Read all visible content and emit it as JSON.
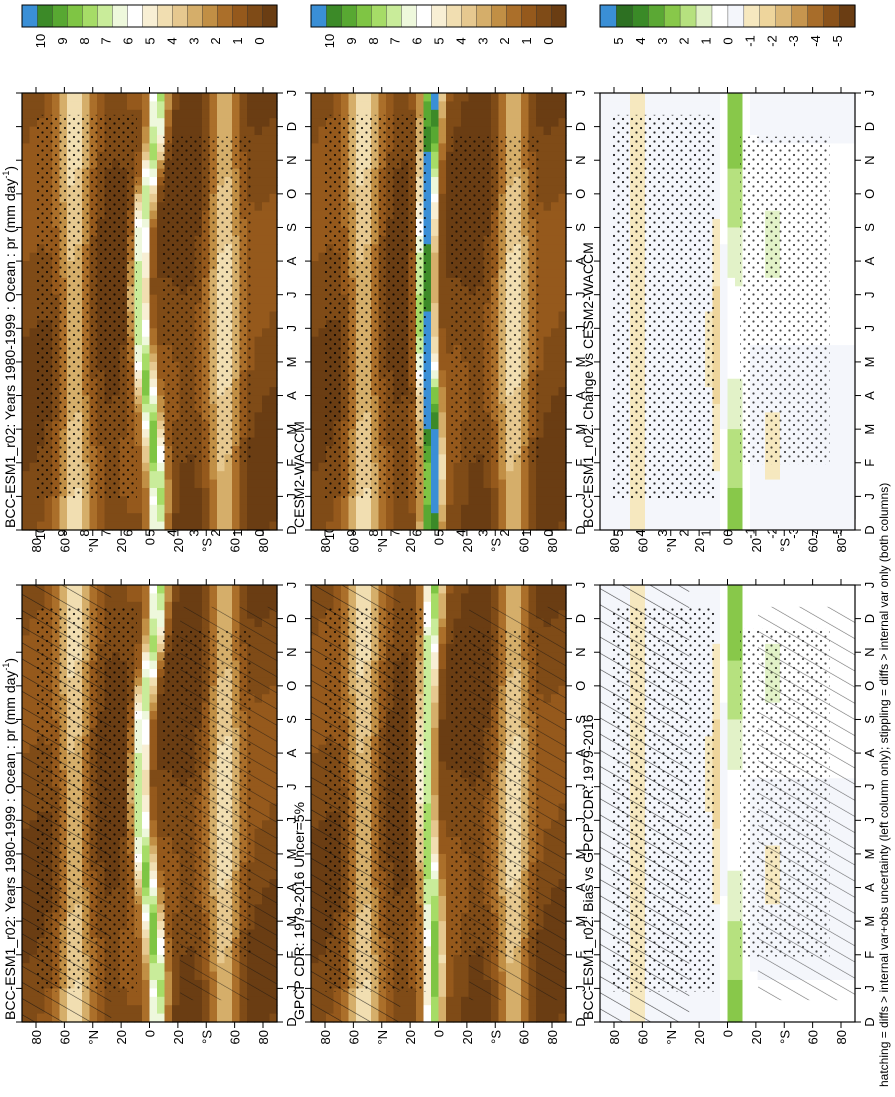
{
  "footer_note": "hatching = diffs > internal var+obs uncertainty (left column only); stippling = diffs > internal var only (both columns)",
  "colors": {
    "abs_scale": [
      "#6a3d13",
      "#7f4b17",
      "#95591c",
      "#ab6f2a",
      "#c18f45",
      "#d5ae6a",
      "#e6c88f",
      "#f1deb1",
      "#f8efd4",
      "#ffffff",
      "#eef8dc",
      "#c9ec9a",
      "#a6dc67",
      "#7fc544",
      "#58a832",
      "#3c8a28",
      "#3a8fd6"
    ],
    "diff_scale": [
      "#6a3d13",
      "#8a521a",
      "#a86d2a",
      "#c6954e",
      "#dcb877",
      "#eed59c",
      "#f6e8bf",
      "#f4f6fb",
      "#ffffff",
      "#e2f2c8",
      "#b6e17f",
      "#88c84a",
      "#5ba834",
      "#3a8a27",
      "#2d7022",
      "#3a8fd6"
    ]
  },
  "chart_data": [
    {
      "type": "heatmap",
      "panel": "top-left",
      "title": "BCC-ESM1_r02: Years 1980-1999 : Ocean : pr (mm day",
      "title_sup": "-1",
      "title_end": ")",
      "x_ticks": [
        "D",
        "J",
        "F",
        "M",
        "A",
        "M",
        "J",
        "J",
        "A",
        "S",
        "O",
        "N",
        "D",
        "J"
      ],
      "y_ticks": [
        "80",
        "60",
        "°N",
        "20",
        "0",
        "20",
        "°S",
        "60",
        "80"
      ],
      "colorbar": {
        "ticks": [
          "10",
          "9",
          "8",
          "7",
          "6",
          "5",
          "4",
          "3",
          "2",
          "1",
          "0"
        ],
        "range": [
          0,
          10
        ],
        "scale": "abs_scale"
      },
      "overlay": "hatching+stippling",
      "itcz": {
        "lat_by_month": [
          -5,
          -6,
          -4,
          -2,
          1,
          4,
          6,
          7,
          6,
          5,
          2,
          -2,
          -5,
          -6
        ],
        "peak_mm_day": 7
      }
    },
    {
      "type": "heatmap",
      "panel": "top-right",
      "title": "BCC-ESM1_r02: Years 1980-1999 : Ocean : pr (mm day",
      "title_sup": "-1",
      "title_end": ")",
      "x_ticks": [
        "D",
        "J",
        "F",
        "M",
        "A",
        "M",
        "J",
        "J",
        "A",
        "S",
        "O",
        "N",
        "D",
        "J"
      ],
      "y_ticks": [
        "80",
        "60",
        "°N",
        "20",
        "0",
        "20",
        "°S",
        "60",
        "80"
      ],
      "colorbar": {
        "ticks": [
          "10",
          "9",
          "8",
          "7",
          "6",
          "5",
          "4",
          "3",
          "2",
          "1",
          "0"
        ],
        "range": [
          0,
          10
        ],
        "scale": "abs_scale"
      },
      "overlay": "stippling",
      "itcz": {
        "lat_by_month": [
          -5,
          -6,
          -4,
          -2,
          1,
          4,
          6,
          7,
          6,
          5,
          2,
          -2,
          -5,
          -6
        ],
        "peak_mm_day": 7
      }
    },
    {
      "type": "heatmap",
      "panel": "middle-left",
      "title": "GPCP CDR: 1979-2016 Uncer=5%",
      "x_ticks": [
        "D",
        "J",
        "F",
        "M",
        "A",
        "M",
        "J",
        "J",
        "A",
        "S",
        "O",
        "N",
        "D",
        "J"
      ],
      "y_ticks": [
        "80",
        "60",
        "°N",
        "20",
        "0",
        "20",
        "°S",
        "60",
        "80"
      ],
      "colorbar": {
        "ticks": [
          "10",
          "9",
          "8",
          "7",
          "6",
          "5",
          "4",
          "3",
          "2",
          "1",
          "0"
        ],
        "range": [
          0,
          10
        ],
        "scale": "abs_scale"
      },
      "overlay": "hatching+stippling",
      "itcz": {
        "lat_by_month": [
          4,
          3,
          3,
          4,
          5,
          7,
          8,
          9,
          9,
          8,
          7,
          6,
          4,
          3
        ],
        "peak_mm_day": 7
      }
    },
    {
      "type": "heatmap",
      "panel": "middle-right",
      "title": "CESM2-WACCM",
      "x_ticks": [
        "D",
        "J",
        "F",
        "M",
        "A",
        "M",
        "J",
        "J",
        "A",
        "S",
        "O",
        "N",
        "D",
        "J"
      ],
      "y_ticks": [
        "80",
        "60",
        "°N",
        "20",
        "0",
        "20",
        "°S",
        "60",
        "80"
      ],
      "colorbar": {
        "ticks": [
          "10",
          "9",
          "8",
          "7",
          "6",
          "5",
          "4",
          "3",
          "2",
          "1",
          "0"
        ],
        "range": [
          0,
          10
        ],
        "scale": "abs_scale"
      },
      "overlay": "stippling",
      "itcz": {
        "lat_by_month": [
          5,
          4,
          4,
          5,
          6,
          8,
          9,
          9,
          9,
          8,
          7,
          6,
          5,
          4
        ],
        "peak_mm_day": 10
      }
    },
    {
      "type": "heatmap",
      "panel": "bottom-left",
      "title": "BCC-ESM1_r02: Bias vs GPCP CDR: 1979-2016",
      "x_ticks": [
        "D",
        "J",
        "F",
        "M",
        "A",
        "M",
        "J",
        "J",
        "A",
        "S",
        "O",
        "N",
        "D",
        "J"
      ],
      "y_ticks": [
        "80",
        "60",
        "°N",
        "20",
        "0",
        "20",
        "°S",
        "60",
        "80"
      ],
      "colorbar": {
        "ticks": [
          "5",
          "4",
          "3",
          "2",
          "1",
          "0",
          "-1",
          "-2",
          "-3",
          "-4",
          "-5"
        ],
        "range": [
          -5,
          5
        ],
        "scale": "diff_scale"
      },
      "overlay": "hatching+stippling"
    },
    {
      "type": "heatmap",
      "panel": "bottom-right",
      "title": "BCC-ESM1_r02: Change vs CESM2-WACCM",
      "x_ticks": [
        "D",
        "J",
        "F",
        "M",
        "A",
        "M",
        "J",
        "J",
        "A",
        "S",
        "O",
        "N",
        "D",
        "J"
      ],
      "y_ticks": [
        "80",
        "60",
        "°N",
        "20",
        "0",
        "20",
        "°S",
        "60",
        "80"
      ],
      "colorbar": {
        "ticks": [
          "5",
          "4",
          "3",
          "2",
          "1",
          "0",
          "-1",
          "-2",
          "-3",
          "-4",
          "-5"
        ],
        "range": [
          -5,
          5
        ],
        "scale": "diff_scale"
      },
      "overlay": "stippling"
    }
  ]
}
